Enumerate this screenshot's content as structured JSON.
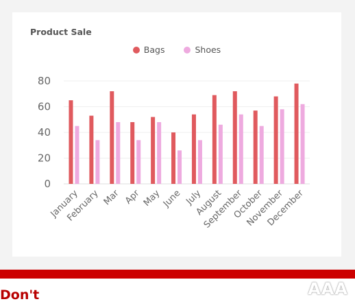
{
  "chart_data": {
    "type": "bar",
    "title": "Product Sale",
    "categories": [
      "January",
      "February",
      "Mar",
      "Apr",
      "May",
      "June",
      "July",
      "August",
      "September",
      "October",
      "November",
      "December"
    ],
    "series": [
      {
        "name": "Bags",
        "color": "#e05a5e",
        "values": [
          65,
          53,
          72,
          48,
          52,
          40,
          54,
          69,
          72,
          57,
          68,
          78
        ]
      },
      {
        "name": "Shoes",
        "color": "#eeaadf",
        "values": [
          45,
          34,
          48,
          34,
          48,
          26,
          34,
          46,
          54,
          45,
          58,
          62
        ]
      }
    ],
    "yticks": [
      0,
      20,
      40,
      60,
      80
    ],
    "ylim": [
      0,
      80
    ],
    "grid": true,
    "legend_position": "top-center"
  },
  "footer": {
    "label": "Don't",
    "bar_color": "#cc0000",
    "watermark_text": "AAA"
  }
}
